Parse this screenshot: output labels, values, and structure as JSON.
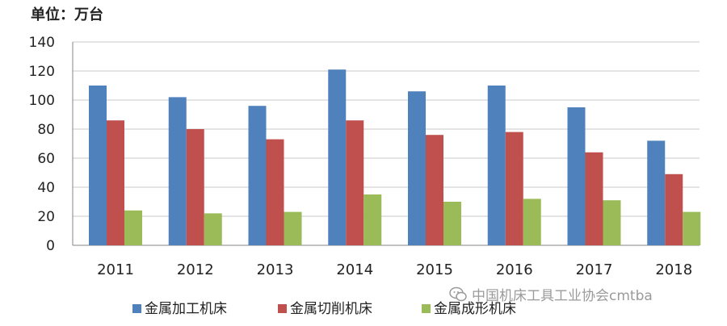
{
  "unit_label": "单位：万台",
  "watermark": {
    "icon": "wechat-icon",
    "text": "中国机床工具工业协会cmtba"
  },
  "chart_data": {
    "type": "bar",
    "title": "",
    "xlabel": "",
    "ylabel": "",
    "ylim": [
      0,
      140
    ],
    "yticks": [
      0,
      20,
      40,
      60,
      80,
      100,
      120,
      140
    ],
    "grid": true,
    "legend_position": "bottom",
    "categories": [
      "2011",
      "2012",
      "2013",
      "2014",
      "2015",
      "2016",
      "2017",
      "2018"
    ],
    "series": [
      {
        "name": "金属加工机床",
        "color": "#4f81bd",
        "values": [
          110,
          102,
          96,
          121,
          106,
          110,
          95,
          72
        ]
      },
      {
        "name": "金属切削机床",
        "color": "#c0504d",
        "values": [
          86,
          80,
          73,
          86,
          76,
          78,
          64,
          49
        ]
      },
      {
        "name": "金属成形机床",
        "color": "#9bbb59",
        "values": [
          24,
          22,
          23,
          35,
          30,
          32,
          31,
          23
        ]
      }
    ]
  }
}
